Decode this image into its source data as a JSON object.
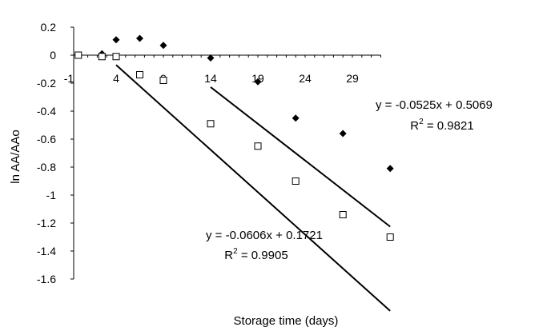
{
  "chart_data": {
    "type": "scatter",
    "xlabel": "Storage time (days)",
    "ylabel": "ln AA/AAo",
    "xlim": [
      -1,
      32
    ],
    "ylim": [
      -1.6,
      0.2
    ],
    "x_ticks": [
      -1,
      4,
      9,
      14,
      19,
      24,
      29
    ],
    "x_tick_labels": [
      "-1",
      "4",
      "9",
      "14",
      "19",
      "24",
      "29"
    ],
    "y_ticks": [
      0.2,
      0,
      -0.2,
      -0.4,
      -0.6,
      -0.8,
      -1,
      -1.2,
      -1.4,
      -1.6
    ],
    "y_tick_labels": [
      "0.2",
      "0",
      "-0.2",
      "-0.4",
      "-0.6",
      "-0.8",
      "-1",
      "-1.2",
      "-1.4",
      "-1.6"
    ],
    "grid": false,
    "legend": "none",
    "series": [
      {
        "marker": "filled-diamond",
        "color": "#000000",
        "x": [
          0,
          2.5,
          4,
          6.5,
          9,
          14,
          19,
          23,
          28,
          33
        ],
        "y": [
          0,
          0.01,
          0.11,
          0.12,
          0.07,
          -0.02,
          -0.19,
          -0.45,
          -0.56,
          -0.81
        ],
        "trendline": {
          "x": [
            14,
            33
          ],
          "slope": -0.0525,
          "intercept": 0.5069
        },
        "equation": "y = -0.0525x + 0.5069",
        "r2_prefix": "R",
        "r2_sup": "2",
        "r2_value": " = 0.9821"
      },
      {
        "marker": "open-square",
        "color": "#000000",
        "x": [
          0,
          2.5,
          4,
          6.5,
          9,
          14,
          19,
          23,
          28,
          33
        ],
        "y": [
          0,
          -0.01,
          -0.01,
          -0.14,
          -0.18,
          -0.49,
          -0.65,
          -0.9,
          -1.14,
          -1.3
        ],
        "trendline": {
          "x": [
            4,
            33
          ],
          "slope": -0.0606,
          "intercept": 0.1721
        },
        "equation": "y = -0.0606x + 0.1721",
        "r2_prefix": "R",
        "r2_sup": "2",
        "r2_value": " = 0.9905"
      }
    ]
  }
}
